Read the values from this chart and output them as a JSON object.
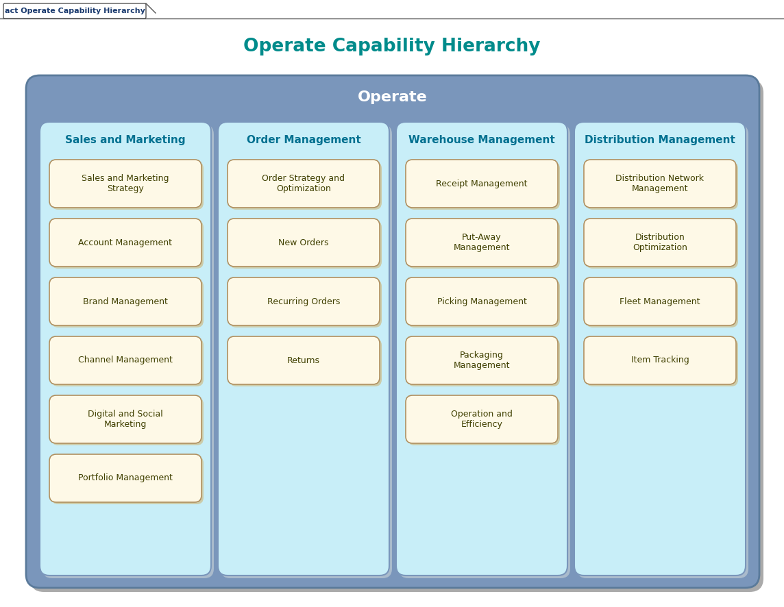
{
  "title": "Operate Capability Hierarchy",
  "tab_label": "act Operate Capability Hierarchy",
  "bg_color": "#ffffff",
  "outer_box_fill": "#7a96bb",
  "outer_box_edge": "#5a7a9a",
  "outer_box_label": "Operate",
  "outer_box_label_color": "#ffffff",
  "swim_lane_bg": "#c8eef8",
  "swim_lane_border": "#7a96bb",
  "item_bg": "#fef9e7",
  "item_border": "#b09060",
  "title_color": "#008b8b",
  "lane_title_color": "#007090",
  "item_text_color": "#404000",
  "tab_text_color": "#1a3a6e",
  "tab_border_color": "#555555",
  "shadow_color": "#aaaaaa",
  "lanes": [
    {
      "title": "Sales and Marketing",
      "items": [
        "Sales and Marketing\nStrategy",
        "Account Management",
        "Brand Management",
        "Channel Management",
        "Digital and Social\nMarketing",
        "Portfolio Management"
      ]
    },
    {
      "title": "Order Management",
      "items": [
        "Order Strategy and\nOptimization",
        "New Orders",
        "Recurring Orders",
        "Returns"
      ]
    },
    {
      "title": "Warehouse Management",
      "items": [
        "Receipt Management",
        "Put-Away\nManagement",
        "Picking Management",
        "Packaging\nManagement",
        "Operation and\nEfficiency"
      ]
    },
    {
      "title": "Distribution Management",
      "items": [
        "Distribution Network\nManagement",
        "Distribution\nOptimization",
        "Fleet Management",
        "Item Tracking"
      ]
    }
  ]
}
